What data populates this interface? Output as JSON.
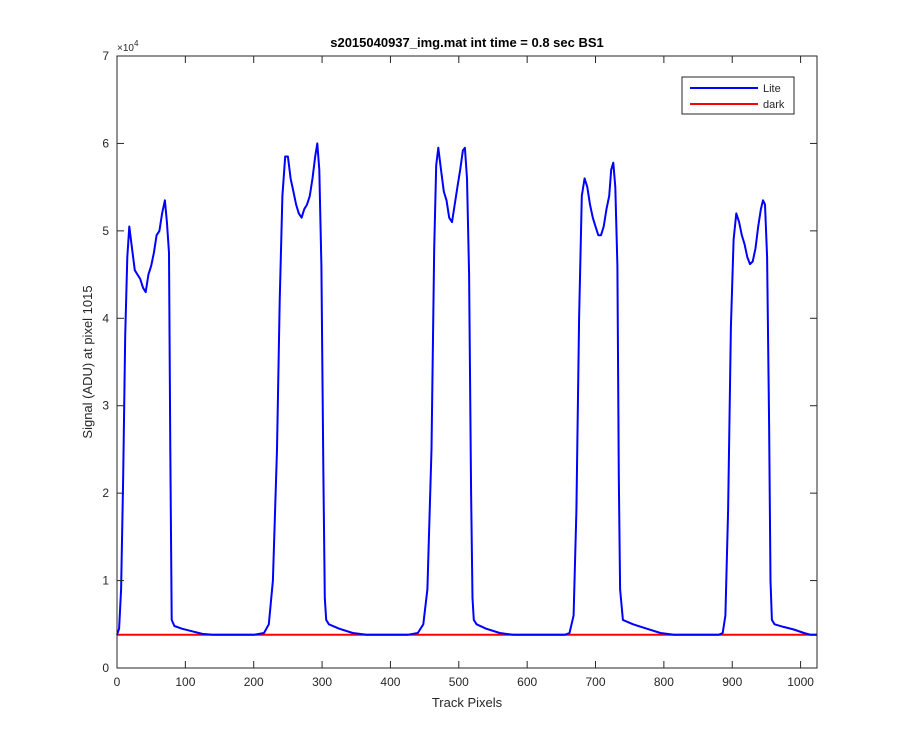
{
  "chart_data": {
    "type": "line",
    "title": "s2015040937_img.mat int time = 0.8 sec   BS1",
    "xlabel": "Track Pixels",
    "ylabel": "Signal (ADU) at pixel 1015",
    "y_exponent_label": "×10",
    "y_exponent_power": "4",
    "xlim": [
      0,
      1024
    ],
    "ylim": [
      0,
      7
    ],
    "y_scale_factor": 10000,
    "xticks": [
      0,
      100,
      200,
      300,
      400,
      500,
      600,
      700,
      800,
      900,
      1000
    ],
    "yticks": [
      0,
      1,
      2,
      3,
      4,
      5,
      6,
      7
    ],
    "grid": false,
    "legend_position": "top-right",
    "series": [
      {
        "name": "Lite",
        "color": "#0000ff",
        "x": [
          0,
          3,
          6,
          9,
          12,
          15,
          18,
          22,
          26,
          30,
          34,
          38,
          42,
          46,
          50,
          54,
          58,
          62,
          66,
          70,
          73,
          76,
          78,
          80,
          84,
          95,
          110,
          125,
          140,
          160,
          180,
          200,
          215,
          222,
          228,
          234,
          238,
          242,
          246,
          250,
          254,
          258,
          262,
          266,
          270,
          274,
          278,
          282,
          286,
          290,
          293,
          296,
          299,
          302,
          304,
          306,
          310,
          325,
          345,
          365,
          385,
          405,
          425,
          440,
          448,
          454,
          460,
          464,
          467,
          470,
          474,
          478,
          482,
          486,
          490,
          494,
          498,
          502,
          506,
          509,
          512,
          515,
          518,
          520,
          522,
          526,
          540,
          560,
          580,
          600,
          620,
          640,
          655,
          662,
          668,
          672,
          676,
          680,
          684,
          688,
          692,
          696,
          700,
          704,
          708,
          712,
          716,
          720,
          723,
          726,
          729,
          732,
          734,
          736,
          740,
          755,
          775,
          795,
          815,
          835,
          855,
          870,
          880,
          886,
          890,
          894,
          898,
          902,
          906,
          910,
          914,
          918,
          922,
          926,
          930,
          934,
          938,
          942,
          945,
          948,
          951,
          954,
          956,
          958,
          962,
          975,
          990,
          1005,
          1015,
          1024
        ],
        "y": [
          0.38,
          0.45,
          0.9,
          2.2,
          3.8,
          4.7,
          5.05,
          4.8,
          4.55,
          4.5,
          4.45,
          4.35,
          4.3,
          4.5,
          4.6,
          4.75,
          4.95,
          5.0,
          5.2,
          5.35,
          5.1,
          4.75,
          2.5,
          0.55,
          0.48,
          0.45,
          0.42,
          0.39,
          0.38,
          0.38,
          0.38,
          0.38,
          0.4,
          0.5,
          1.0,
          2.5,
          4.2,
          5.4,
          5.85,
          5.85,
          5.6,
          5.45,
          5.3,
          5.2,
          5.15,
          5.25,
          5.3,
          5.4,
          5.6,
          5.85,
          6.0,
          5.7,
          4.6,
          2.2,
          0.8,
          0.55,
          0.5,
          0.45,
          0.4,
          0.38,
          0.38,
          0.38,
          0.38,
          0.4,
          0.5,
          0.9,
          2.5,
          4.8,
          5.75,
          5.95,
          5.7,
          5.45,
          5.35,
          5.15,
          5.1,
          5.3,
          5.5,
          5.7,
          5.92,
          5.95,
          5.6,
          4.5,
          2.0,
          0.8,
          0.55,
          0.5,
          0.45,
          0.4,
          0.38,
          0.38,
          0.38,
          0.38,
          0.38,
          0.4,
          0.6,
          1.8,
          4.0,
          5.4,
          5.6,
          5.5,
          5.3,
          5.15,
          5.05,
          4.95,
          4.95,
          5.05,
          5.25,
          5.4,
          5.7,
          5.78,
          5.5,
          4.6,
          2.2,
          0.9,
          0.55,
          0.5,
          0.45,
          0.4,
          0.38,
          0.38,
          0.38,
          0.38,
          0.38,
          0.4,
          0.6,
          1.8,
          3.9,
          4.9,
          5.2,
          5.1,
          4.95,
          4.85,
          4.7,
          4.62,
          4.65,
          4.8,
          5.05,
          5.25,
          5.35,
          5.3,
          4.7,
          2.8,
          1.0,
          0.55,
          0.5,
          0.47,
          0.44,
          0.4,
          0.38,
          0.38
        ]
      },
      {
        "name": "dark",
        "color": "#ff0000",
        "x": [
          0,
          1024
        ],
        "y": [
          0.38,
          0.38
        ]
      }
    ]
  }
}
